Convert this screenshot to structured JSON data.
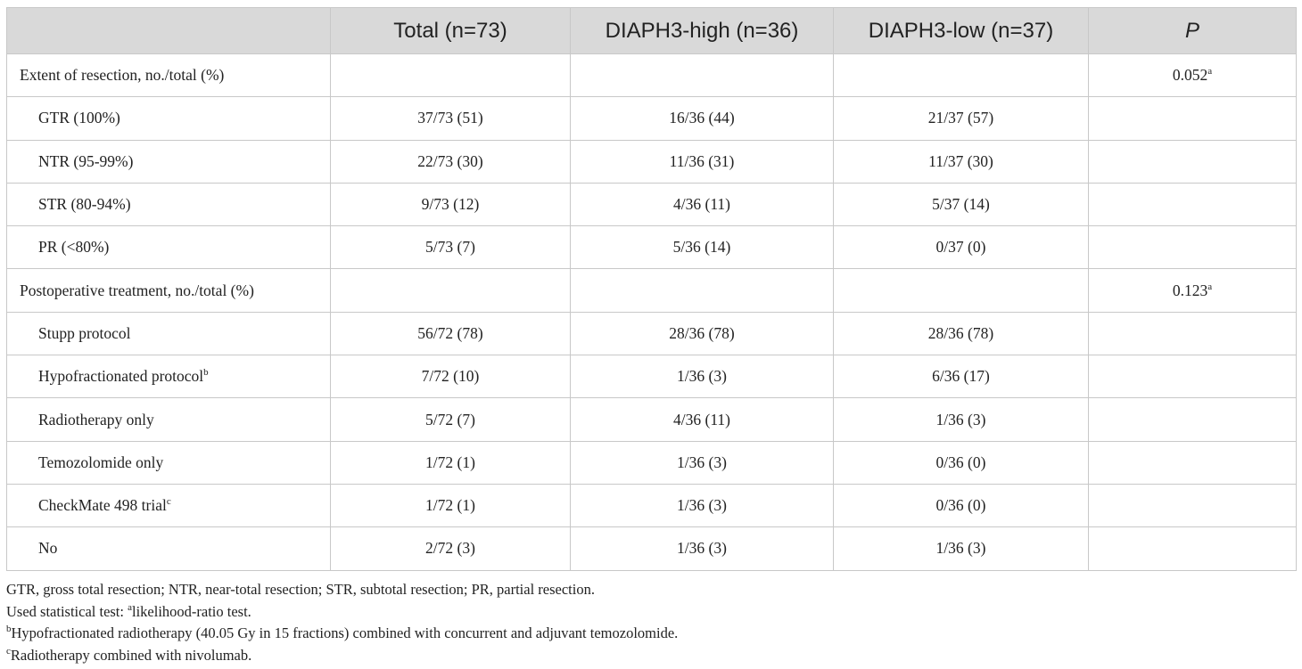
{
  "table": {
    "header": [
      "",
      "Total (n=73)",
      "DIAPH3-high (n=36)",
      "DIAPH3-low (n=37)",
      "P"
    ],
    "sections": [
      {
        "label": "Extent of resection, no./total (%)",
        "p": {
          "text": "0.052",
          "sup": "a"
        },
        "rows": [
          [
            {
              "text": "GTR (100%)"
            },
            {
              "text": "37/73 (51)"
            },
            {
              "text": "16/36 (44)"
            },
            {
              "text": "21/37 (57)"
            }
          ],
          [
            {
              "text": "NTR (95-99%)"
            },
            {
              "text": "22/73 (30)"
            },
            {
              "text": "11/36 (31)"
            },
            {
              "text": "11/37 (30)"
            }
          ],
          [
            {
              "text": "STR (80-94%)"
            },
            {
              "text": "9/73 (12)"
            },
            {
              "text": "4/36 (11)"
            },
            {
              "text": "5/37 (14)"
            }
          ],
          [
            {
              "text": "PR (<80%)"
            },
            {
              "text": "5/73 (7)"
            },
            {
              "text": "5/36 (14)"
            },
            {
              "text": "0/37 (0)"
            }
          ]
        ]
      },
      {
        "label": "Postoperative treatment, no./total (%)",
        "p": {
          "text": "0.123",
          "sup": "a"
        },
        "rows": [
          [
            {
              "text": "Stupp protocol"
            },
            {
              "text": "56/72 (78)"
            },
            {
              "text": "28/36 (78)"
            },
            {
              "text": "28/36 (78)"
            }
          ],
          [
            {
              "text": "Hypofractionated protocol",
              "sup": "b"
            },
            {
              "text": "7/72 (10)"
            },
            {
              "text": "1/36 (3)"
            },
            {
              "text": "6/36 (17)"
            }
          ],
          [
            {
              "text": "Radiotherapy only"
            },
            {
              "text": "5/72 (7)"
            },
            {
              "text": "4/36 (11)"
            },
            {
              "text": "1/36 (3)"
            }
          ],
          [
            {
              "text": "Temozolomide only"
            },
            {
              "text": "1/72 (1)"
            },
            {
              "text": "1/36 (3)"
            },
            {
              "text": "0/36 (0)"
            }
          ],
          [
            {
              "text": "CheckMate 498 trial",
              "sup": "c"
            },
            {
              "text": "1/72 (1)"
            },
            {
              "text": "1/36 (3)"
            },
            {
              "text": "0/36 (0)"
            }
          ],
          [
            {
              "text": "No"
            },
            {
              "text": "2/72 (3)"
            },
            {
              "text": "1/36 (3)"
            },
            {
              "text": "1/36 (3)"
            }
          ]
        ]
      }
    ]
  },
  "footnotes": [
    {
      "text": "GTR, gross total resection; NTR, near-total resection; STR, subtotal resection; PR, partial resection."
    },
    {
      "prefix": "Used statistical test: ",
      "sup": "a",
      "text": "likelihood-ratio test."
    },
    {
      "sup": "b",
      "text": "Hypofractionated radiotherapy (40.05 Gy in 15 fractions) combined with concurrent and adjuvant temozolomide."
    },
    {
      "sup": "c",
      "text": "Radiotherapy combined with nivolumab."
    }
  ]
}
